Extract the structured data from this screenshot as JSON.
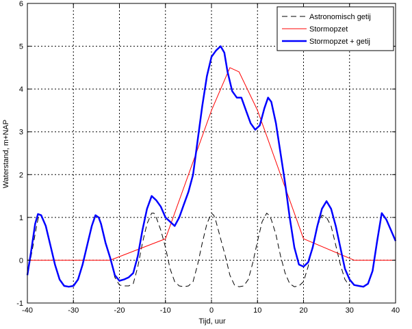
{
  "chart_data": {
    "type": "line",
    "xlabel": "Tijd, uur",
    "ylabel": "Waterstand, m+NAP",
    "xlim": [
      -40,
      40
    ],
    "ylim": [
      -1,
      6
    ],
    "xticks": [
      -40,
      -30,
      -20,
      -10,
      0,
      10,
      20,
      30,
      40
    ],
    "yticks": [
      -1,
      0,
      1,
      2,
      3,
      4,
      5,
      6
    ],
    "grid": "dotted",
    "legend_position": "top-right",
    "series": [
      {
        "name": "Astronomisch getij",
        "color": "#000000",
        "style": "dashed",
        "points": [
          [
            -40,
            -0.35
          ],
          [
            -39,
            0.2
          ],
          [
            -38,
            0.8
          ],
          [
            -37.5,
            1.05
          ],
          [
            -37,
            1.05
          ],
          [
            -36,
            0.8
          ],
          [
            -35,
            0.35
          ],
          [
            -34,
            -0.1
          ],
          [
            -33,
            -0.45
          ],
          [
            -32,
            -0.6
          ],
          [
            -31,
            -0.62
          ],
          [
            -30,
            -0.6
          ],
          [
            -29,
            -0.45
          ],
          [
            -28,
            -0.1
          ],
          [
            -27,
            0.35
          ],
          [
            -26,
            0.8
          ],
          [
            -25.2,
            1.05
          ],
          [
            -24.5,
            1.0
          ],
          [
            -24,
            0.85
          ],
          [
            -23,
            0.4
          ],
          [
            -22,
            0.05
          ],
          [
            -21,
            -0.4
          ],
          [
            -20,
            -0.58
          ],
          [
            -19,
            -0.6
          ],
          [
            -18,
            -0.6
          ],
          [
            -17,
            -0.55
          ],
          [
            -16,
            -0.15
          ],
          [
            -15,
            0.4
          ],
          [
            -14,
            0.85
          ],
          [
            -13,
            1.1
          ],
          [
            -12.5,
            1.1
          ],
          [
            -12,
            1.0
          ],
          [
            -11,
            0.7
          ],
          [
            -10,
            0.3
          ],
          [
            -9,
            -0.2
          ],
          [
            -8,
            -0.5
          ],
          [
            -7,
            -0.6
          ],
          [
            -6,
            -0.62
          ],
          [
            -5,
            -0.6
          ],
          [
            -4,
            -0.5
          ],
          [
            -3,
            -0.1
          ],
          [
            -2,
            0.4
          ],
          [
            -1,
            0.85
          ],
          [
            0,
            1.1
          ],
          [
            0.5,
            1.05
          ],
          [
            1,
            0.9
          ],
          [
            2,
            0.5
          ],
          [
            3,
            0.1
          ],
          [
            4,
            -0.35
          ],
          [
            5,
            -0.58
          ],
          [
            6,
            -0.62
          ],
          [
            7,
            -0.6
          ],
          [
            8,
            -0.45
          ],
          [
            9,
            -0.05
          ],
          [
            10,
            0.45
          ],
          [
            11,
            0.9
          ],
          [
            12,
            1.1
          ],
          [
            12.5,
            1.05
          ],
          [
            13,
            0.95
          ],
          [
            14,
            0.6
          ],
          [
            15,
            0.1
          ],
          [
            16,
            -0.3
          ],
          [
            17,
            -0.55
          ],
          [
            18,
            -0.62
          ],
          [
            19,
            -0.6
          ],
          [
            20,
            -0.5
          ],
          [
            21,
            -0.15
          ],
          [
            22,
            0.35
          ],
          [
            23,
            0.8
          ],
          [
            24,
            1.05
          ],
          [
            25,
            1.0
          ],
          [
            26,
            0.8
          ],
          [
            27,
            0.35
          ],
          [
            28,
            -0.1
          ],
          [
            29,
            -0.45
          ],
          [
            30,
            -0.6
          ]
        ]
      },
      {
        "name": "Stormopzet",
        "color": "#ff0000",
        "style": "solid",
        "points": [
          [
            -40,
            0
          ],
          [
            -22,
            0
          ],
          [
            -10,
            0.5
          ],
          [
            0,
            3.5
          ],
          [
            4,
            4.5
          ],
          [
            6,
            4.4
          ],
          [
            10,
            3.5
          ],
          [
            20,
            0.5
          ],
          [
            31,
            0
          ],
          [
            40,
            0
          ]
        ]
      },
      {
        "name": "Stormopzet + getij",
        "color": "#0000ff",
        "style": "solid-thick",
        "points": [
          [
            -40,
            -0.35
          ],
          [
            -39.2,
            0.2
          ],
          [
            -38.3,
            0.85
          ],
          [
            -37.7,
            1.08
          ],
          [
            -37,
            1.05
          ],
          [
            -36,
            0.8
          ],
          [
            -35,
            0.35
          ],
          [
            -34,
            -0.1
          ],
          [
            -33,
            -0.45
          ],
          [
            -32,
            -0.6
          ],
          [
            -31,
            -0.62
          ],
          [
            -30,
            -0.6
          ],
          [
            -29,
            -0.45
          ],
          [
            -28,
            -0.1
          ],
          [
            -27,
            0.35
          ],
          [
            -26,
            0.8
          ],
          [
            -25.2,
            1.05
          ],
          [
            -24.5,
            1.0
          ],
          [
            -24,
            0.85
          ],
          [
            -23,
            0.4
          ],
          [
            -22,
            0.05
          ],
          [
            -21,
            -0.35
          ],
          [
            -20,
            -0.48
          ],
          [
            -19,
            -0.45
          ],
          [
            -18,
            -0.4
          ],
          [
            -17,
            -0.3
          ],
          [
            -16,
            0.1
          ],
          [
            -15,
            0.7
          ],
          [
            -14,
            1.2
          ],
          [
            -13,
            1.5
          ],
          [
            -12,
            1.4
          ],
          [
            -11,
            1.25
          ],
          [
            -10,
            1.0
          ],
          [
            -9,
            0.9
          ],
          [
            -8,
            0.8
          ],
          [
            -7,
            1.0
          ],
          [
            -6,
            1.3
          ],
          [
            -5,
            1.6
          ],
          [
            -4,
            2.0
          ],
          [
            -3,
            2.8
          ],
          [
            -2,
            3.6
          ],
          [
            -1,
            4.3
          ],
          [
            0,
            4.75
          ],
          [
            1,
            4.9
          ],
          [
            2,
            5.0
          ],
          [
            2.8,
            4.85
          ],
          [
            3.5,
            4.4
          ],
          [
            4.5,
            3.95
          ],
          [
            5.5,
            3.8
          ],
          [
            6.5,
            3.8
          ],
          [
            7.5,
            3.5
          ],
          [
            8.5,
            3.2
          ],
          [
            9.5,
            3.05
          ],
          [
            10.5,
            3.15
          ],
          [
            11.5,
            3.55
          ],
          [
            12.3,
            3.8
          ],
          [
            13,
            3.7
          ],
          [
            14,
            3.2
          ],
          [
            15,
            2.5
          ],
          [
            16,
            1.8
          ],
          [
            17,
            1.0
          ],
          [
            18,
            0.3
          ],
          [
            19,
            -0.1
          ],
          [
            20,
            -0.15
          ],
          [
            21,
            -0.05
          ],
          [
            22,
            0.3
          ],
          [
            23,
            0.8
          ],
          [
            24,
            1.2
          ],
          [
            25,
            1.38
          ],
          [
            26,
            1.2
          ],
          [
            27,
            0.8
          ],
          [
            28,
            0.3
          ],
          [
            29,
            -0.2
          ],
          [
            30,
            -0.45
          ],
          [
            31,
            -0.58
          ],
          [
            32,
            -0.6
          ],
          [
            33,
            -0.62
          ],
          [
            34,
            -0.55
          ],
          [
            35,
            -0.25
          ],
          [
            36,
            0.45
          ],
          [
            37,
            1.1
          ],
          [
            38,
            0.95
          ],
          [
            39,
            0.7
          ],
          [
            40,
            0.45
          ]
        ]
      }
    ]
  }
}
